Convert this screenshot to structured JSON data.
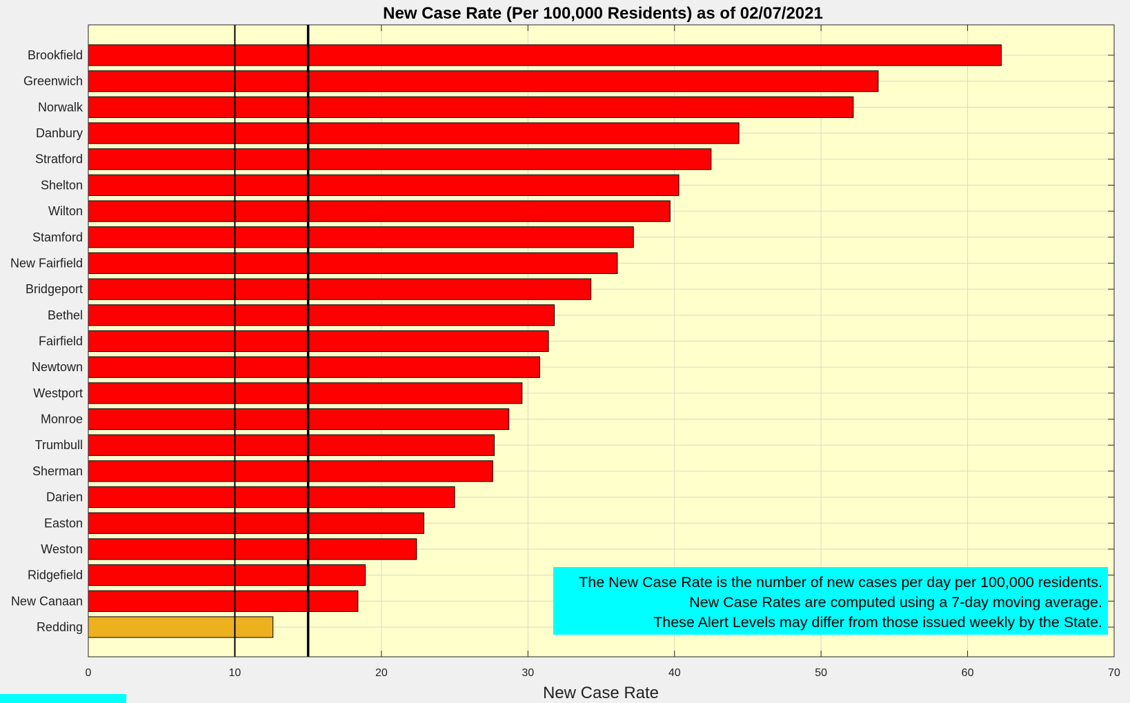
{
  "chart_data": {
    "type": "bar",
    "orientation": "horizontal",
    "title": "New Case Rate (Per 100,000 Residents) as of 02/07/2021",
    "xlabel": "New Case Rate",
    "ylabel": "",
    "xlim": [
      0,
      70
    ],
    "xticks": [
      0,
      10,
      20,
      30,
      40,
      50,
      60,
      70
    ],
    "grid": true,
    "reference_lines": [
      {
        "value": 10,
        "style": "thin"
      },
      {
        "value": 15,
        "style": "thick"
      }
    ],
    "categories": [
      "Brookfield",
      "Greenwich",
      "Norwalk",
      "Danbury",
      "Stratford",
      "Shelton",
      "Wilton",
      "Stamford",
      "New Fairfield",
      "Bridgeport",
      "Bethel",
      "Fairfield",
      "Newtown",
      "Westport",
      "Monroe",
      "Trumbull",
      "Sherman",
      "Darien",
      "Easton",
      "Weston",
      "Ridgefield",
      "New Canaan",
      "Redding"
    ],
    "values": [
      62.3,
      53.9,
      52.2,
      44.4,
      42.5,
      40.3,
      39.7,
      37.2,
      36.1,
      34.3,
      31.8,
      31.4,
      30.8,
      29.6,
      28.7,
      27.7,
      27.6,
      25.0,
      22.9,
      22.4,
      18.9,
      18.4,
      12.6
    ],
    "bar_colors": [
      "#ff0000",
      "#ff0000",
      "#ff0000",
      "#ff0000",
      "#ff0000",
      "#ff0000",
      "#ff0000",
      "#ff0000",
      "#ff0000",
      "#ff0000",
      "#ff0000",
      "#ff0000",
      "#ff0000",
      "#ff0000",
      "#ff0000",
      "#ff0000",
      "#ff0000",
      "#ff0000",
      "#ff0000",
      "#ff0000",
      "#ff0000",
      "#ff0000",
      "#edb120"
    ]
  },
  "colors": {
    "figure_background": "#f0f0f0",
    "plot_background": "#ffffcc",
    "high_alert_bar": "#ff0000",
    "orange_alert_bar": "#edb120",
    "annotation_background": "#00ffff"
  },
  "annotation": {
    "lines": [
      "The New Case Rate is the number of new cases per day per 100,000 residents.",
      "New Case Rates are computed using a 7-day moving average.",
      "These Alert Levels may differ from those issued weekly by the State."
    ]
  }
}
